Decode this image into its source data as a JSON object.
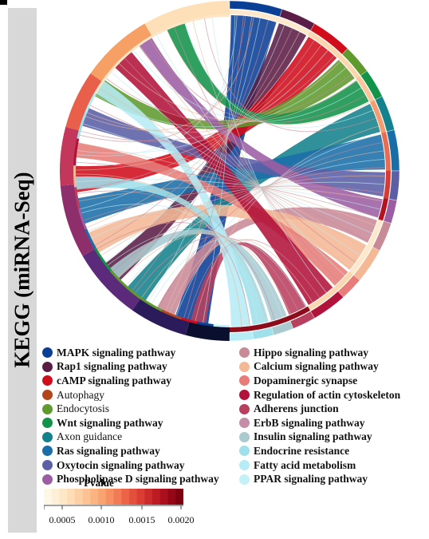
{
  "side_label": "KEGG (miRNA-Seq)",
  "pvalue": {
    "title": "Pvalue",
    "ticks": [
      "0.0005",
      "0.0010",
      "0.0015",
      "0.0020"
    ],
    "gradient": [
      "#fff7e6",
      "#fde3c0",
      "#fcc494",
      "#f99f6c",
      "#ef6a4b",
      "#d83a31",
      "#b31220",
      "#7f0011"
    ]
  },
  "legend_left": [
    {
      "label": "MAPK signaling pathway",
      "color": "#0a3f96",
      "bold": true
    },
    {
      "label": "Rap1 signaling pathway",
      "color": "#5a1e46",
      "bold": true
    },
    {
      "label": "cAMP signaling pathway",
      "color": "#d10d1c",
      "bold": true
    },
    {
      "label": "Autophagy",
      "color": "#b3451a",
      "bold": false
    },
    {
      "label": "Endocytosis",
      "color": "#5e9a2e",
      "bold": false
    },
    {
      "label": "Wnt signaling pathway",
      "color": "#12934a",
      "bold": true
    },
    {
      "label": "Axon guidance",
      "color": "#14828c",
      "bold": false
    },
    {
      "label": "Ras signaling pathway",
      "color": "#1a6ea8",
      "bold": true
    },
    {
      "label": "Oxytocin signaling pathway",
      "color": "#5b5fa6",
      "bold": true
    },
    {
      "label": "Phospholipase D signaling pathway",
      "color": "#9b5ea2",
      "bold": true
    }
  ],
  "legend_right": [
    {
      "label": "Hippo signaling pathway",
      "color": "#c98a98",
      "bold": true
    },
    {
      "label": "Calcium signaling pathway",
      "color": "#f5b895",
      "bold": true
    },
    {
      "label": "Dopaminergic synapse",
      "color": "#e77c78",
      "bold": true
    },
    {
      "label": "Regulation of actin cytoskeleton",
      "color": "#b0123a",
      "bold": true
    },
    {
      "label": "Adherens junction",
      "color": "#b8405f",
      "bold": true
    },
    {
      "label": "ErbB signaling pathway",
      "color": "#c58ea6",
      "bold": true
    },
    {
      "label": "Insulin signaling pathway",
      "color": "#a9cbd0",
      "bold": true
    },
    {
      "label": "Endocrine resistance",
      "color": "#9fe0ea",
      "bold": true
    },
    {
      "label": "Fatty acid metabolism",
      "color": "#b6ecf5",
      "bold": true
    },
    {
      "label": "PPAR signaling pathway",
      "color": "#c4f1f8",
      "bold": true
    }
  ]
}
